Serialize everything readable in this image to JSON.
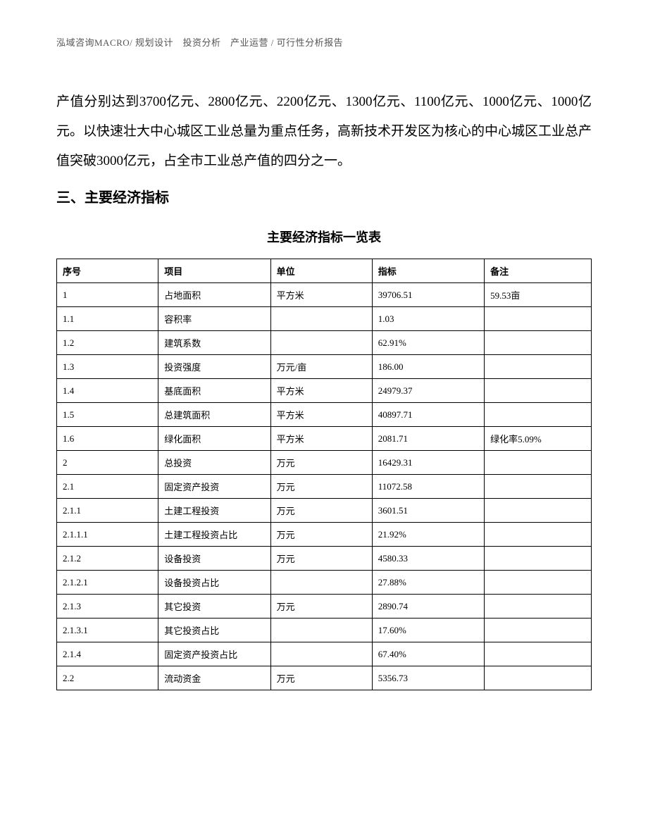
{
  "header": "泓域咨询MACRO/ 规划设计　投资分析　产业运营 / 可行性分析报告",
  "paragraph": "产值分别达到3700亿元、2800亿元、2200亿元、1300亿元、1100亿元、1000亿元、1000亿元。以快速壮大中心城区工业总量为重点任务，高新技术开发区为核心的中心城区工业总产值突破3000亿元，占全市工业总产值的四分之一。",
  "section_heading": "三、主要经济指标",
  "table_title": "主要经济指标一览表",
  "table": {
    "columns": [
      "序号",
      "项目",
      "单位",
      "指标",
      "备注"
    ],
    "rows": [
      [
        "1",
        "占地面积",
        "平方米",
        "39706.51",
        "59.53亩"
      ],
      [
        "1.1",
        "容积率",
        "",
        "1.03",
        ""
      ],
      [
        "1.2",
        "建筑系数",
        "",
        "62.91%",
        ""
      ],
      [
        "1.3",
        "投资强度",
        "万元/亩",
        "186.00",
        ""
      ],
      [
        "1.4",
        "基底面积",
        "平方米",
        "24979.37",
        ""
      ],
      [
        "1.5",
        "总建筑面积",
        "平方米",
        "40897.71",
        ""
      ],
      [
        "1.6",
        "绿化面积",
        "平方米",
        "2081.71",
        "绿化率5.09%"
      ],
      [
        "2",
        "总投资",
        "万元",
        "16429.31",
        ""
      ],
      [
        "2.1",
        "固定资产投资",
        "万元",
        "11072.58",
        ""
      ],
      [
        "2.1.1",
        "土建工程投资",
        "万元",
        "3601.51",
        ""
      ],
      [
        "2.1.1.1",
        "土建工程投资占比",
        "万元",
        "21.92%",
        ""
      ],
      [
        "2.1.2",
        "设备投资",
        "万元",
        "4580.33",
        ""
      ],
      [
        "2.1.2.1",
        "设备投资占比",
        "",
        "27.88%",
        ""
      ],
      [
        "2.1.3",
        "其它投资",
        "万元",
        "2890.74",
        ""
      ],
      [
        "2.1.3.1",
        "其它投资占比",
        "",
        "17.60%",
        ""
      ],
      [
        "2.1.4",
        "固定资产投资占比",
        "",
        "67.40%",
        ""
      ],
      [
        "2.2",
        "流动资金",
        "万元",
        "5356.73",
        ""
      ]
    ]
  }
}
